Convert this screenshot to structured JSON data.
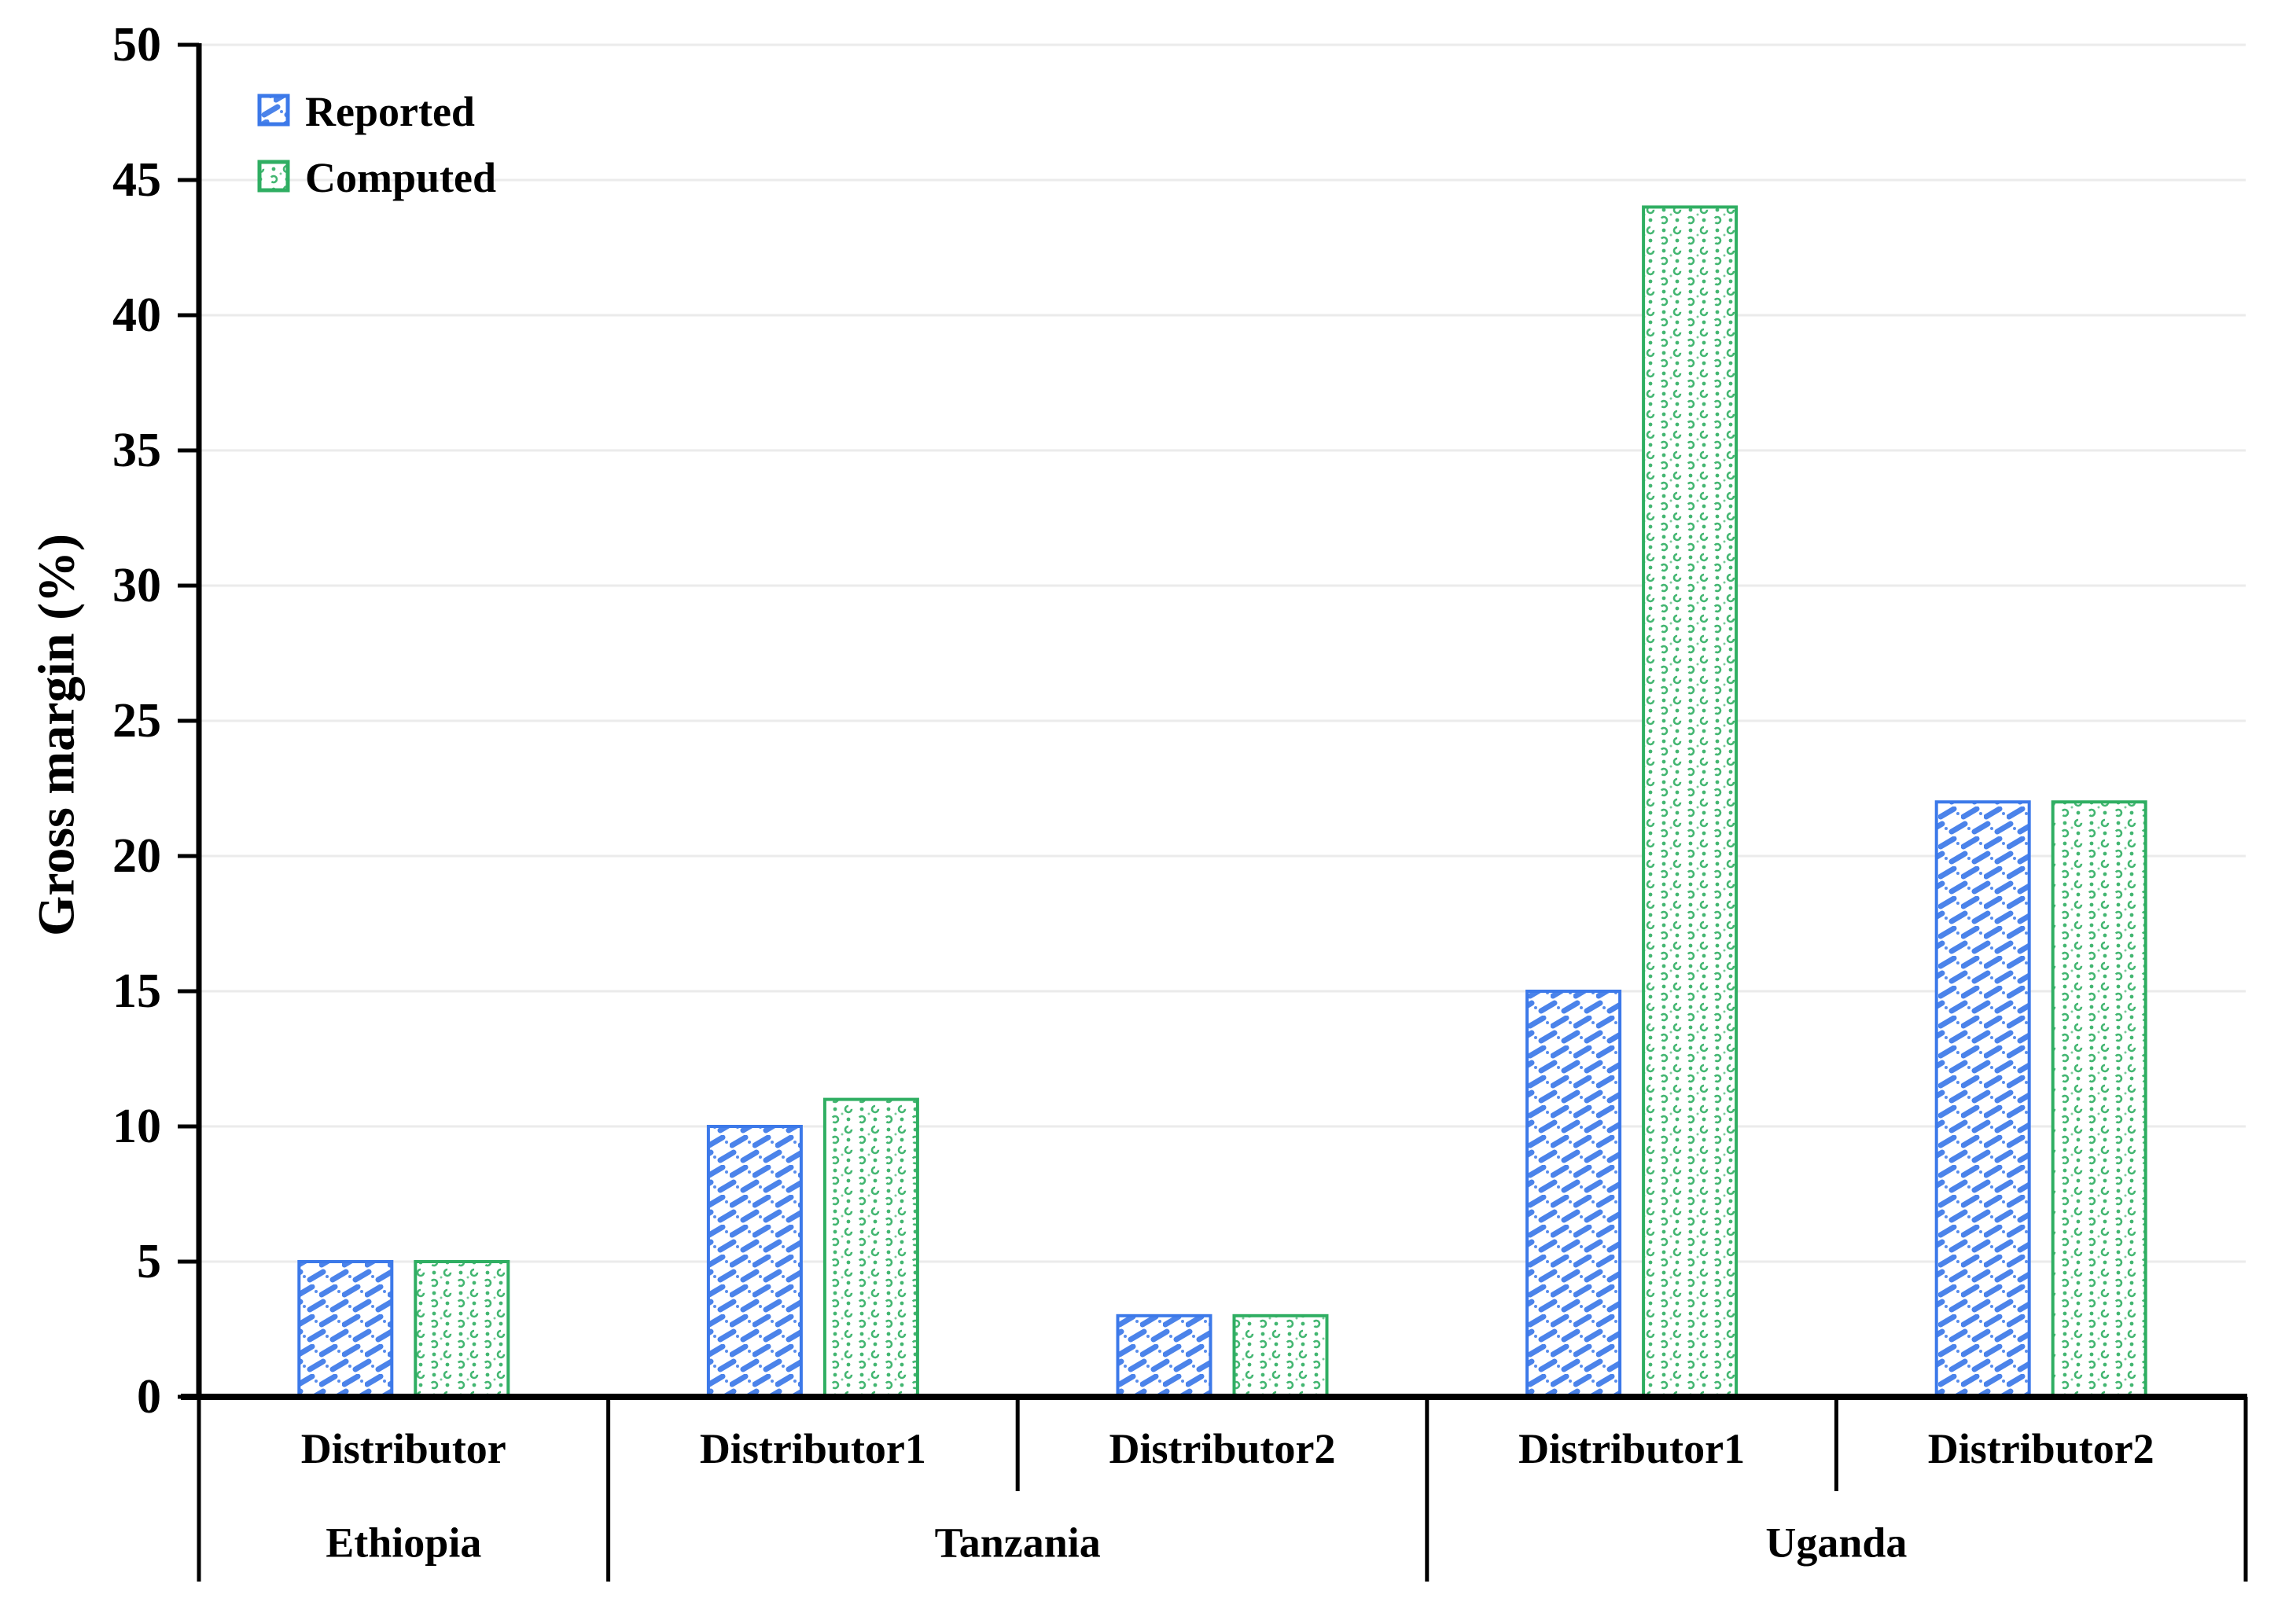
{
  "chart_data": {
    "type": "bar",
    "title": "",
    "xlabel": "",
    "ylabel": "Gross margin (%)",
    "ylim": [
      0,
      50
    ],
    "yticks": [
      0,
      5,
      10,
      15,
      20,
      25,
      30,
      35,
      40,
      45,
      50
    ],
    "grid": "horizontal",
    "legend": {
      "position": "top-left-inside",
      "items": [
        "Reported",
        "Computed"
      ]
    },
    "categories": [
      {
        "distributor": "Distributor",
        "country": "Ethiopia"
      },
      {
        "distributor": "Distributor1",
        "country": "Tanzania"
      },
      {
        "distributor": "Distributor2",
        "country": "Tanzania"
      },
      {
        "distributor": "Distributor1",
        "country": "Uganda"
      },
      {
        "distributor": "Distributor2",
        "country": "Uganda"
      }
    ],
    "series": [
      {
        "name": "Reported",
        "values": [
          5,
          10,
          3,
          15,
          22
        ],
        "color": "#3C79E9",
        "pattern": "diagonal-hatch"
      },
      {
        "name": "Computed",
        "values": [
          5,
          11,
          3,
          44,
          22
        ],
        "color": "#2FAE62",
        "pattern": "dots"
      }
    ]
  },
  "colors": {
    "background": "#FFFFFF",
    "axis": "#000000",
    "gridline": "#EBEBEB",
    "text": "#000000",
    "reported_blue": "#3C79E9",
    "computed_green": "#2FAE62"
  }
}
